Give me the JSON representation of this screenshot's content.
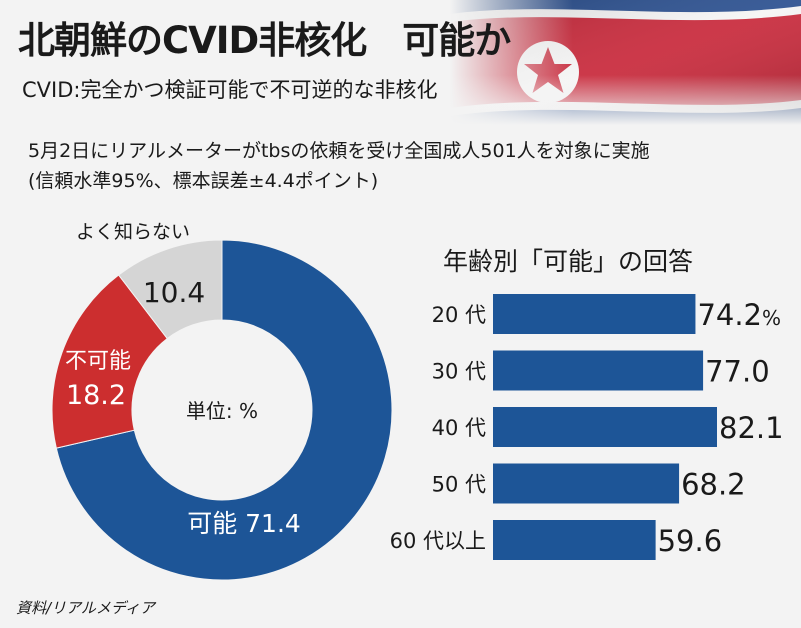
{
  "header": {
    "title": "北朝鮮のCVID非核化　可能か",
    "subtitle": "CVID:完全かつ検証可能で不可逆的な非核化",
    "survey_note_1": "5月2日にリアルメーターがtbsの依頼を受け全国成人501人を対象に実施",
    "survey_note_2": "(信頼水準95%、標本誤差±4.4ポイント)"
  },
  "chart_data": [
    {
      "type": "pie",
      "center_label": "単位: %",
      "slices": [
        {
          "name": "可能",
          "value": 71.4,
          "display": "可能 71.4",
          "color": "#1d5597"
        },
        {
          "name": "不可能",
          "value": 18.2,
          "display_name": "不可能",
          "display_value": "18.2",
          "color": "#cc2e2f"
        },
        {
          "name": "よく知らない",
          "value": 10.4,
          "display_value": "10.4",
          "color": "#d5d5d5"
        }
      ]
    },
    {
      "type": "bar",
      "orientation": "horizontal",
      "title": "年齢別「可能」の回答",
      "categories": [
        "20 代",
        "30 代",
        "40 代",
        "50 代",
        "60 代以上"
      ],
      "values": [
        74.2,
        77.0,
        82.1,
        68.2,
        59.6
      ],
      "value_labels": [
        "74.2%",
        "77.0",
        "82.1",
        "68.2",
        "59.6"
      ],
      "color": "#1d5597"
    }
  ],
  "footer": {
    "source": "資料/リアルメディア"
  },
  "flag": {
    "red": "#c8283a",
    "blue": "#2a4f8f",
    "white": "#f5f5f5"
  }
}
